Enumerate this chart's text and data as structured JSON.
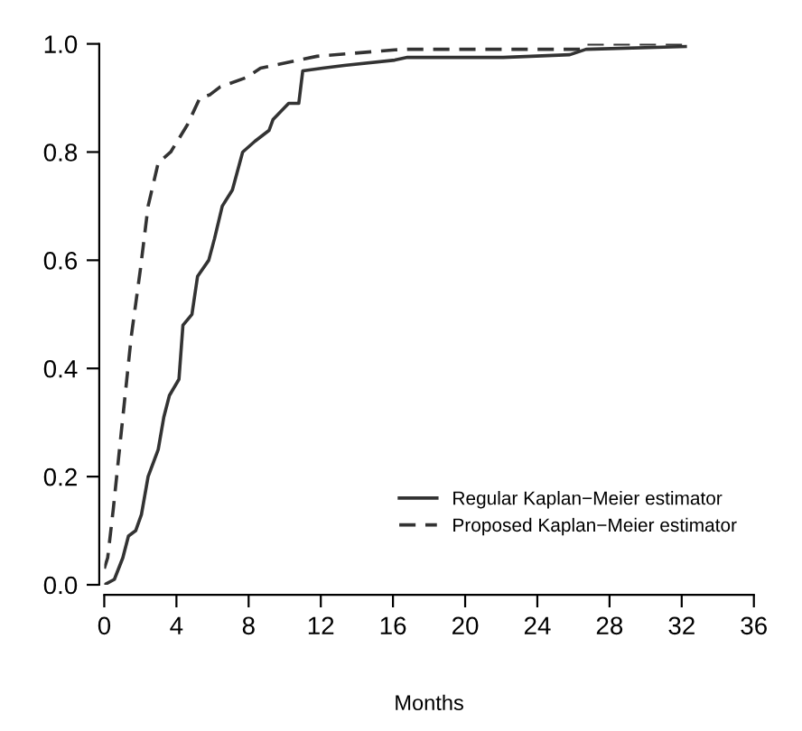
{
  "chart_data": {
    "type": "line",
    "xlabel": "Months",
    "xlim": [
      0,
      36
    ],
    "ylim": [
      0,
      1.0
    ],
    "xticks": [
      0,
      4,
      8,
      12,
      16,
      20,
      24,
      28,
      32,
      36
    ],
    "yticks": [
      {
        "value": 0,
        "label": "0.0"
      },
      0.2,
      0.4,
      0.6,
      0.8,
      {
        "value": 1.0,
        "label": "1.0"
      }
    ],
    "legend": "bottom right",
    "grid": false,
    "series": [
      {
        "name": "Regular Kaplan−Meier estimator",
        "color": "#333333",
        "line_style": "solid",
        "x": [
          0,
          0.56,
          1.03,
          1.34,
          1.74,
          2.06,
          2.43,
          2.99,
          3.3,
          3.61,
          4.14,
          4.36,
          4.86,
          5.17,
          5.79,
          6.11,
          6.54,
          7.1,
          7.67,
          8.35,
          9.13,
          9.35,
          10.22,
          10.78,
          11.0,
          12.1,
          13.3,
          16.1,
          16.8,
          22.1,
          25.8,
          26.7,
          32.2
        ],
        "values": [
          0,
          0.01,
          0.05,
          0.09,
          0.1,
          0.13,
          0.2,
          0.25,
          0.31,
          0.35,
          0.38,
          0.48,
          0.5,
          0.57,
          0.6,
          0.64,
          0.7,
          0.73,
          0.8,
          0.82,
          0.84,
          0.86,
          0.89,
          0.89,
          0.95,
          0.955,
          0.96,
          0.97,
          0.975,
          0.975,
          0.98,
          0.99,
          0.995
        ]
      },
      {
        "name": "Proposed Kaplan−Meier estimator",
        "color": "#333333",
        "line_style": "dashed",
        "x": [
          0,
          0.19,
          0.5,
          1.03,
          1.5,
          1.99,
          2.43,
          2.99,
          3.68,
          4.6,
          5.3,
          5.86,
          6.4,
          7.89,
          8.66,
          11.78,
          16.1,
          16.8,
          26.4,
          26.7,
          32.2
        ],
        "values": [
          0.03,
          0.05,
          0.14,
          0.31,
          0.46,
          0.58,
          0.7,
          0.78,
          0.8,
          0.85,
          0.9,
          0.906,
          0.92,
          0.938,
          0.955,
          0.977,
          0.989,
          0.99,
          0.99,
          1.0,
          1.0
        ]
      }
    ]
  }
}
